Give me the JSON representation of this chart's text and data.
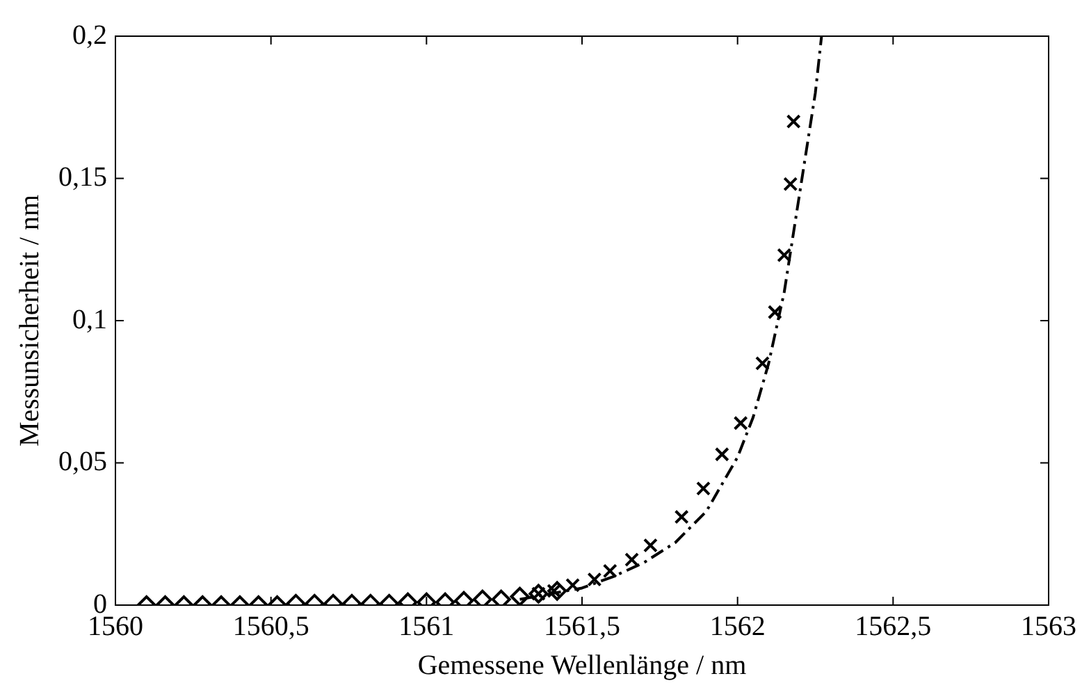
{
  "chart_data": {
    "type": "scatter",
    "xlabel": "Gemessene Wellenlänge / nm",
    "ylabel": "Messunsicherheit / nm",
    "xlim": [
      1560,
      1563
    ],
    "xticks": [
      1560,
      {
        "value": 1560.5,
        "label": "1560,5"
      },
      1561,
      {
        "value": 1561.5,
        "label": "1561,5"
      },
      1562,
      {
        "value": 1562.5,
        "label": "1562,5"
      },
      1563
    ],
    "ylim": [
      0,
      0.2
    ],
    "yticks": [
      0,
      {
        "value": 0.05,
        "label": "0,05"
      },
      {
        "value": 0.1,
        "label": "0,1"
      },
      {
        "value": 0.15,
        "label": "0,15"
      },
      {
        "value": 0.2,
        "label": "0,2"
      }
    ],
    "grid": false,
    "legend": false,
    "series": [
      {
        "marker": "diamond",
        "color": "#000000",
        "x": [
          1560.1,
          1560.16,
          1560.22,
          1560.28,
          1560.34,
          1560.4,
          1560.46,
          1560.52,
          1560.58,
          1560.64,
          1560.7,
          1560.76,
          1560.82,
          1560.88,
          1560.94,
          1561,
          1561.06,
          1561.12,
          1561.18,
          1561.24,
          1561.3,
          1561.36,
          1561.42
        ],
        "values": [
          0,
          0,
          0,
          0,
          0,
          0,
          0,
          0,
          0.0005,
          0.0005,
          0.0005,
          0.0005,
          0.0005,
          0.0005,
          0.001,
          0.001,
          0.001,
          0.0015,
          0.002,
          0.002,
          0.003,
          0.004,
          0.005
        ]
      },
      {
        "marker": "cross",
        "color": "#000000",
        "x": [
          1561.36,
          1561.41,
          1561.47,
          1561.54,
          1561.59,
          1561.66,
          1561.72,
          1561.82,
          1561.89,
          1561.95,
          1562.01,
          1562.08,
          1562.12,
          1562.15,
          1562.17,
          1562.18
        ],
        "values": [
          0.004,
          0.005,
          0.007,
          0.009,
          0.012,
          0.016,
          0.021,
          0.031,
          0.041,
          0.053,
          0.064,
          0.085,
          0.103,
          0.123,
          0.148,
          0.17
        ]
      },
      {
        "type": "line",
        "marker": "none",
        "line_style": "dashed",
        "color": "#000000",
        "x": [
          1561.3,
          1561.4,
          1561.5,
          1561.6,
          1561.7,
          1561.8,
          1561.9,
          1562,
          1562.05,
          1562.1,
          1562.15,
          1562.2,
          1562.25,
          1562.27
        ],
        "values": [
          0.002,
          0.004,
          0.006,
          0.01,
          0.015,
          0.022,
          0.033,
          0.052,
          0.066,
          0.085,
          0.11,
          0.145,
          0.18,
          0.2
        ]
      }
    ]
  }
}
